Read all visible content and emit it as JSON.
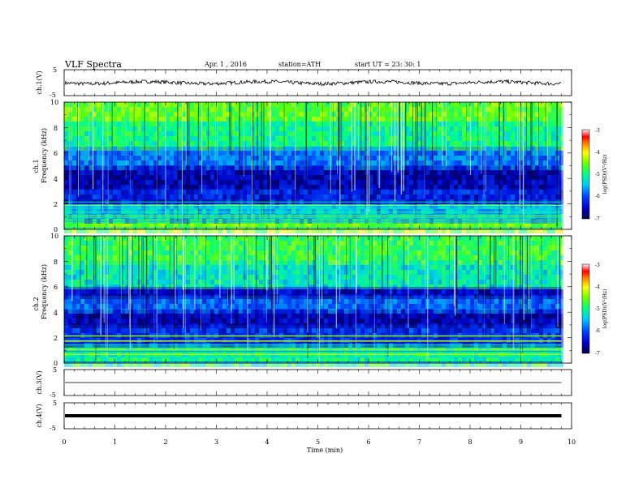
{
  "header": {
    "title": "VLF  Spectra",
    "date": "Apr. 1  , 2016",
    "station": "station=ATH",
    "start": "start  UT  =    23: 30: 1"
  },
  "chart_data": [
    {
      "type": "line",
      "name": "ch1-waveform",
      "ylabel": "ch.1(V)",
      "ylim": [
        -5,
        5
      ],
      "ytick_labels": [
        "5",
        "-5"
      ],
      "xlim": [
        0,
        10
      ],
      "baseline_value": 0,
      "trace_end_min": 9.8
    },
    {
      "type": "heatmap",
      "name": "ch1-spectrogram",
      "ylabel_channel": "ch.1",
      "ylabel": "Frequency  (kHz)",
      "ylim": [
        0,
        10
      ],
      "ytick_labels": [
        "0",
        "2",
        "4",
        "6",
        "8",
        "10"
      ],
      "xlim": [
        0,
        9.8
      ],
      "colorbar": {
        "label": "log(PSD)(V²/Hz)",
        "range": [
          -7,
          -3
        ],
        "tick_labels": [
          "-3",
          "-4",
          "-5",
          "-6",
          "-7"
        ]
      },
      "bands": [
        {
          "fmin": 0,
          "fmax": 0.8,
          "level": -4.5
        },
        {
          "fmin": 0.8,
          "fmax": 2.0,
          "level": -5.5
        },
        {
          "fmin": 2.0,
          "fmax": 3.2,
          "level": -6.3
        },
        {
          "fmin": 3.2,
          "fmax": 5.0,
          "level": -6.6
        },
        {
          "fmin": 5.0,
          "fmax": 6.5,
          "level": -5.8
        },
        {
          "fmin": 6.5,
          "fmax": 8.5,
          "level": -5.0
        },
        {
          "fmin": 8.5,
          "fmax": 10,
          "level": -4.6
        }
      ]
    },
    {
      "type": "heatmap",
      "name": "ch2-spectrogram",
      "ylabel_channel": "ch.2",
      "ylabel": "Frequency  (kHz)",
      "ylim": [
        0,
        10
      ],
      "ytick_labels": [
        "0",
        "2",
        "4",
        "6",
        "8",
        "10"
      ],
      "xlim": [
        0,
        9.8
      ],
      "colorbar": {
        "label": "log(PSD)(V²/Hz)",
        "range": [
          -7,
          -3
        ],
        "tick_labels": [
          "-3",
          "-4",
          "-5",
          "-6",
          "-7"
        ]
      },
      "bands": [
        {
          "fmin": 0,
          "fmax": 1.5,
          "level": -5.0
        },
        {
          "fmin": 1.5,
          "fmax": 3.0,
          "level": -6.2
        },
        {
          "fmin": 3.0,
          "fmax": 4.2,
          "level": -6.6
        },
        {
          "fmin": 4.2,
          "fmax": 5.3,
          "level": -5.9
        },
        {
          "fmin": 5.3,
          "fmax": 6.0,
          "level": -6.5
        },
        {
          "fmin": 6.0,
          "fmax": 8.0,
          "level": -5.2
        },
        {
          "fmin": 8.0,
          "fmax": 10,
          "level": -4.8
        }
      ]
    },
    {
      "type": "line",
      "name": "ch3-waveform",
      "ylabel": "ch.3(V)",
      "ylim": [
        -5,
        5
      ],
      "ytick_labels": [
        "5",
        "-5"
      ],
      "xlim": [
        0,
        10
      ],
      "baseline_value": 0,
      "trace_end_min": 9.8
    },
    {
      "type": "line",
      "name": "ch4-waveform",
      "ylabel": "ch.4(V)",
      "ylim": [
        -5,
        5
      ],
      "ytick_labels": [
        "5",
        "-5"
      ],
      "xlim": [
        0,
        10
      ],
      "baseline_value": 0,
      "trace_end_min": 9.8
    },
    {
      "name": "time-axis",
      "xlabel": "Time  (min)",
      "xlim": [
        0,
        10
      ],
      "xtick_labels": [
        "0",
        "1",
        "2",
        "3",
        "4",
        "5",
        "6",
        "7",
        "8",
        "9",
        "10"
      ]
    }
  ]
}
